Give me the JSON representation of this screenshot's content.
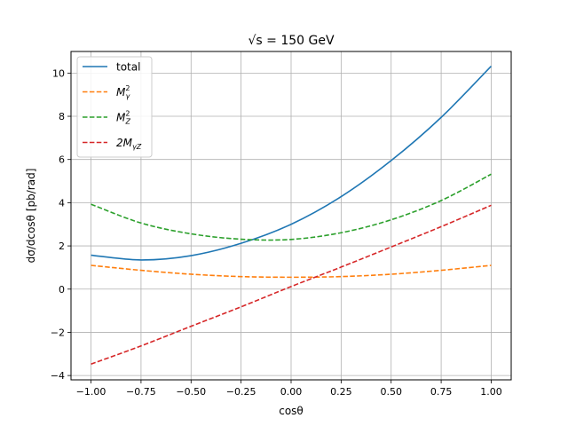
{
  "chart_data": {
    "type": "line",
    "title": "√s = 150 GeV",
    "xlabel": "cosθ",
    "ylabel": "dσ/dcosθ [pb/rad]",
    "xlim": [
      -1.1,
      1.1
    ],
    "ylim": [
      -4.2,
      11.0
    ],
    "grid": true,
    "legend_position": "top-left",
    "x_ticks": [
      -1.0,
      -0.75,
      -0.5,
      -0.25,
      0.0,
      0.25,
      0.5,
      0.75,
      1.0
    ],
    "x_tick_labels": [
      "−1.00",
      "−0.75",
      "−0.50",
      "−0.25",
      "0.00",
      "0.25",
      "0.50",
      "0.75",
      "1.00"
    ],
    "y_ticks": [
      -4,
      -2,
      0,
      2,
      4,
      6,
      8,
      10
    ],
    "y_tick_labels": [
      "−4",
      "−2",
      "0",
      "2",
      "4",
      "6",
      "8",
      "10"
    ],
    "x": [
      -1.0,
      -0.75,
      -0.5,
      -0.25,
      0.0,
      0.25,
      0.5,
      0.75,
      1.0
    ],
    "series": [
      {
        "name": "total",
        "legend": "total",
        "color": "#1f77b4",
        "dash": "solid",
        "values": [
          1.57,
          1.35,
          1.55,
          2.12,
          3.0,
          4.28,
          5.95,
          7.95,
          10.32
        ]
      },
      {
        "name": "M_γ^2",
        "legend_main": "M",
        "legend_sup": "2",
        "legend_sub": "γ",
        "color": "#ff7f0e",
        "dash": "dashed",
        "values": [
          1.1,
          0.87,
          0.69,
          0.58,
          0.55,
          0.58,
          0.69,
          0.87,
          1.1
        ]
      },
      {
        "name": "M_Z^2",
        "legend_main": "M",
        "legend_sup": "2",
        "legend_sub": "Z",
        "color": "#2ca02c",
        "dash": "dashed",
        "values": [
          3.93,
          3.06,
          2.56,
          2.31,
          2.3,
          2.61,
          3.21,
          4.1,
          5.32
        ]
      },
      {
        "name": "2M_γZ",
        "legend_main": "2M",
        "legend_sub": "γZ",
        "color": "#d62728",
        "dash": "dashed",
        "values": [
          -3.47,
          -2.63,
          -1.72,
          -0.82,
          0.12,
          1.02,
          1.95,
          2.89,
          3.88
        ]
      }
    ]
  }
}
